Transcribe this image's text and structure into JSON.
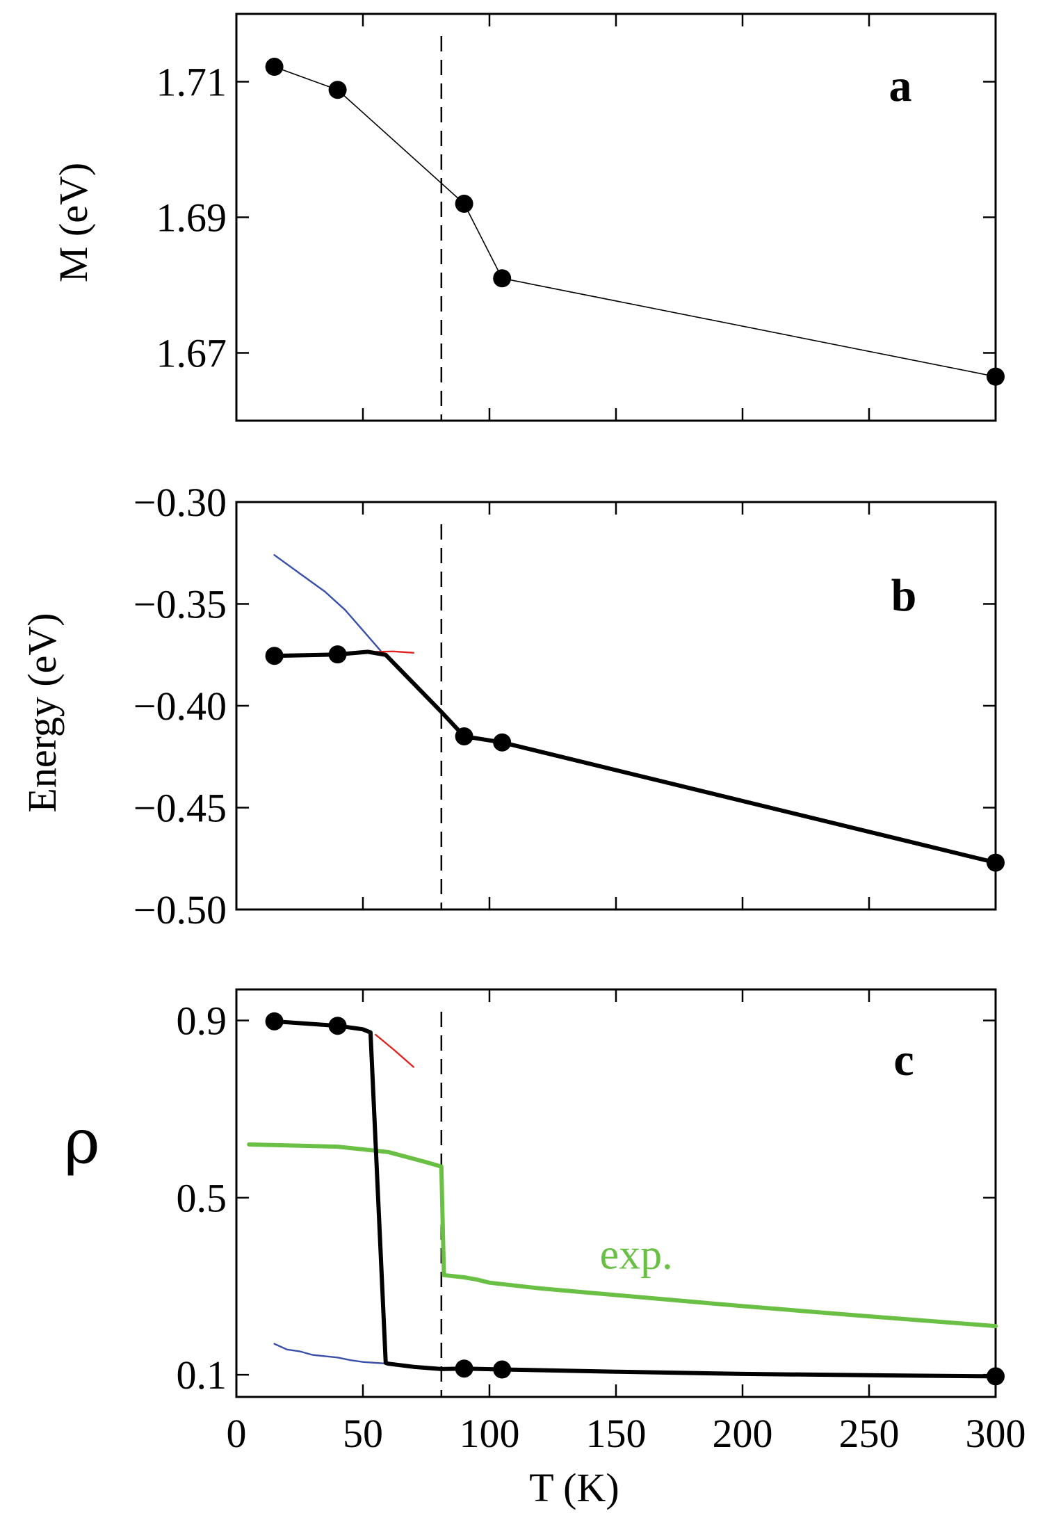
{
  "chart_data": [
    {
      "id": "a",
      "type": "line",
      "panel_label": "a",
      "title": "",
      "xlabel": "",
      "ylabel": "M (eV)",
      "xlim": [
        0,
        300
      ],
      "ylim": [
        1.66,
        1.72
      ],
      "yticks": [
        "1.67",
        "1.69",
        "1.71"
      ],
      "yticks_values": [
        1.67,
        1.69,
        1.71
      ],
      "xticks_values": [
        0,
        50,
        100,
        150,
        200,
        250,
        300
      ],
      "vline": 81,
      "series": [
        {
          "name": "M",
          "color": "#000000",
          "width": 1.6,
          "markers": true,
          "x": [
            15,
            40,
            90,
            105,
            300
          ],
          "y": [
            1.7122,
            1.7088,
            1.692,
            1.681,
            1.6665
          ]
        }
      ]
    },
    {
      "id": "b",
      "type": "line",
      "panel_label": "b",
      "title": "",
      "xlabel": "",
      "ylabel": "Energy (eV)",
      "xlim": [
        0,
        300
      ],
      "ylim": [
        -0.5,
        -0.3
      ],
      "yticks": [
        "−0.30",
        "−0.35",
        "−0.40",
        "−0.45",
        "−0.50"
      ],
      "yticks_values": [
        -0.3,
        -0.35,
        -0.4,
        -0.45,
        -0.5
      ],
      "xticks_values": [
        0,
        50,
        100,
        150,
        200,
        250,
        300
      ],
      "vline": 81,
      "series": [
        {
          "name": "blue",
          "color": "#3a4fa8",
          "width": 2.4,
          "markers": false,
          "x": [
            15,
            25,
            35,
            43,
            50,
            57
          ],
          "y": [
            -0.326,
            -0.335,
            -0.344,
            -0.353,
            -0.363,
            -0.373
          ]
        },
        {
          "name": "red",
          "color": "#e0231f",
          "width": 2.4,
          "markers": false,
          "x": [
            55,
            62,
            70
          ],
          "y": [
            -0.3735,
            -0.3733,
            -0.374
          ]
        },
        {
          "name": "black",
          "color": "#000000",
          "width": 6,
          "markers": true,
          "marker_x": [
            15,
            40,
            90,
            105,
            300
          ],
          "x": [
            15,
            40,
            52,
            59,
            81,
            90,
            105,
            300
          ],
          "y": [
            -0.3755,
            -0.3748,
            -0.3735,
            -0.375,
            -0.403,
            -0.415,
            -0.418,
            -0.477
          ]
        }
      ]
    },
    {
      "id": "c",
      "type": "line",
      "panel_label": "c",
      "title": "",
      "xlabel": "T (K)",
      "ylabel": "ρ",
      "xlim": [
        0,
        300
      ],
      "ylim": [
        0.05,
        0.97
      ],
      "yticks": [
        "0.1",
        "0.5",
        "0.9"
      ],
      "yticks_values": [
        0.1,
        0.5,
        0.9
      ],
      "xticks": [
        "0",
        "50",
        "100",
        "150",
        "200",
        "250",
        "300"
      ],
      "xticks_values": [
        0,
        50,
        100,
        150,
        200,
        250,
        300
      ],
      "vline": 81,
      "annotation": {
        "text": "exp.",
        "x": 158,
        "y": 0.34,
        "color": "#6abf45"
      },
      "series": [
        {
          "name": "red",
          "color": "#e0231f",
          "width": 2.4,
          "markers": false,
          "x": [
            55,
            62,
            70
          ],
          "y": [
            0.868,
            0.835,
            0.795
          ]
        },
        {
          "name": "blue",
          "color": "#3a4fa8",
          "width": 2.4,
          "markers": false,
          "x": [
            15,
            20,
            25,
            30,
            35,
            40,
            45,
            50,
            55,
            60
          ],
          "y": [
            0.17,
            0.157,
            0.153,
            0.145,
            0.142,
            0.139,
            0.133,
            0.129,
            0.127,
            0.125
          ]
        },
        {
          "name": "exp",
          "color": "#6abf45",
          "width": 6,
          "markers": false,
          "x": [
            5,
            20,
            40,
            60,
            75,
            81,
            82,
            90,
            95,
            100,
            120,
            150,
            200,
            250,
            300
          ],
          "y": [
            0.62,
            0.618,
            0.615,
            0.603,
            0.58,
            0.57,
            0.325,
            0.32,
            0.315,
            0.308,
            0.295,
            0.28,
            0.255,
            0.232,
            0.21
          ]
        },
        {
          "name": "black",
          "color": "#000000",
          "width": 6,
          "markers": true,
          "marker_x": [
            15,
            40,
            90,
            105,
            300
          ],
          "x": [
            15,
            40,
            50,
            53,
            59,
            60,
            70,
            81,
            90,
            105,
            150,
            200,
            250,
            300
          ],
          "y": [
            0.898,
            0.888,
            0.88,
            0.873,
            0.127,
            0.125,
            0.118,
            0.113,
            0.114,
            0.112,
            0.107,
            0.102,
            0.099,
            0.0965
          ]
        }
      ]
    }
  ]
}
